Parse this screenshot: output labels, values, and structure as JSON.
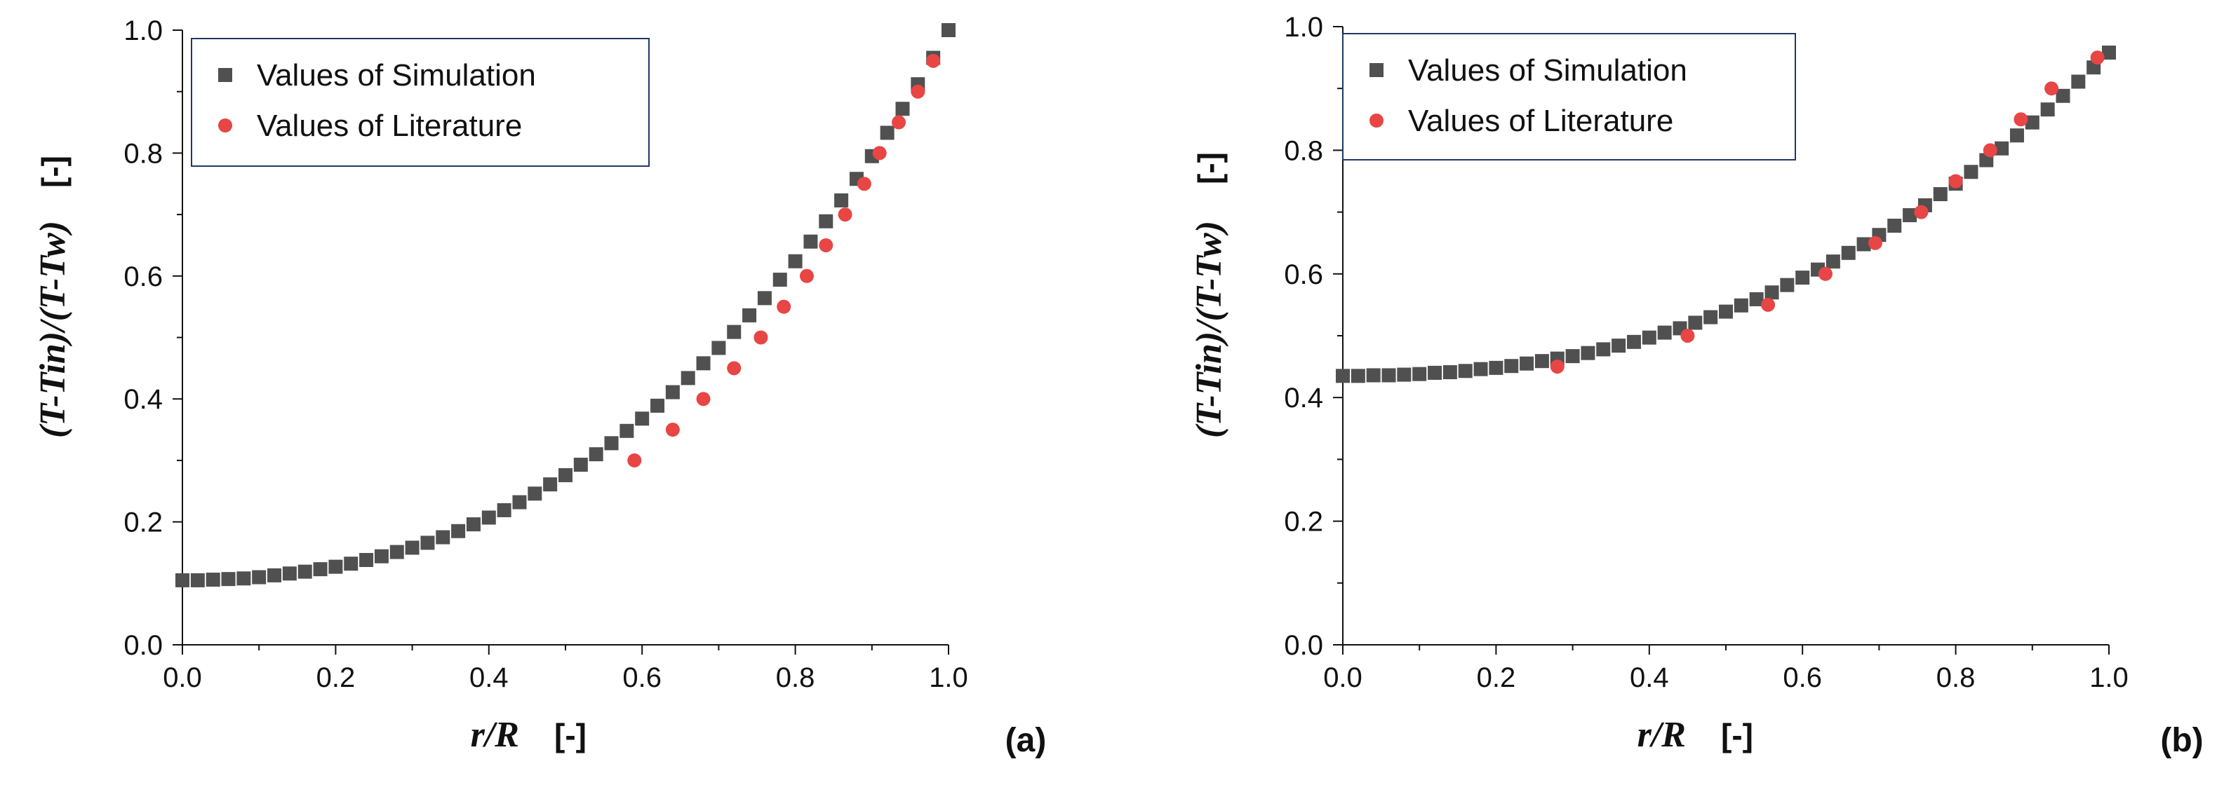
{
  "chart_data": [
    {
      "type": "scatter",
      "panel_label": "(a)",
      "xlabel": "r/R",
      "xlabel_unit": "[-]",
      "ylabel": "(T-Tin)/(T-Tw)",
      "ylabel_unit": "[-]",
      "xlim": [
        0.0,
        1.0
      ],
      "ylim": [
        0.0,
        1.0
      ],
      "xticks": [
        "0.0",
        "0.2",
        "0.4",
        "0.6",
        "0.8",
        "1.0"
      ],
      "yticks": [
        "0.0",
        "0.2",
        "0.4",
        "0.6",
        "0.8",
        "1.0"
      ],
      "legend_position": "top-left",
      "series": [
        {
          "name": "Values of Simulation",
          "marker": "square",
          "color": "#505050",
          "x": [
            0.0,
            0.02,
            0.04,
            0.06,
            0.08,
            0.1,
            0.12,
            0.14,
            0.16,
            0.18,
            0.2,
            0.22,
            0.24,
            0.26,
            0.28,
            0.3,
            0.32,
            0.34,
            0.36,
            0.38,
            0.4,
            0.42,
            0.44,
            0.46,
            0.48,
            0.5,
            0.52,
            0.54,
            0.56,
            0.58,
            0.6,
            0.62,
            0.64,
            0.66,
            0.68,
            0.7,
            0.72,
            0.74,
            0.76,
            0.78,
            0.8,
            0.82,
            0.84,
            0.86,
            0.88,
            0.9,
            0.92,
            0.94,
            0.96,
            0.98,
            1.0
          ],
          "y": [
            0.105,
            0.105,
            0.106,
            0.107,
            0.108,
            0.11,
            0.113,
            0.116,
            0.119,
            0.123,
            0.127,
            0.132,
            0.138,
            0.144,
            0.151,
            0.158,
            0.166,
            0.175,
            0.185,
            0.196,
            0.207,
            0.219,
            0.232,
            0.246,
            0.261,
            0.276,
            0.293,
            0.31,
            0.328,
            0.348,
            0.368,
            0.389,
            0.411,
            0.434,
            0.458,
            0.483,
            0.509,
            0.536,
            0.564,
            0.594,
            0.624,
            0.656,
            0.689,
            0.723,
            0.758,
            0.795,
            0.833,
            0.872,
            0.912,
            0.955,
            1.0
          ]
        },
        {
          "name": "Values of Literature",
          "marker": "circle",
          "color": "#e84545",
          "x": [
            0.59,
            0.64,
            0.68,
            0.72,
            0.755,
            0.785,
            0.815,
            0.84,
            0.865,
            0.89,
            0.91,
            0.935,
            0.96,
            0.98
          ],
          "y": [
            0.3,
            0.35,
            0.4,
            0.45,
            0.5,
            0.55,
            0.6,
            0.65,
            0.7,
            0.75,
            0.8,
            0.85,
            0.9,
            0.95
          ]
        }
      ]
    },
    {
      "type": "scatter",
      "panel_label": "(b)",
      "xlabel": "r/R",
      "xlabel_unit": "[-]",
      "ylabel": "(T-Tin)/(T-Tw)",
      "ylabel_unit": "[-]",
      "xlim": [
        0.0,
        1.0
      ],
      "ylim": [
        0.0,
        1.0
      ],
      "xticks": [
        "0.0",
        "0.2",
        "0.4",
        "0.6",
        "0.8",
        "1.0"
      ],
      "yticks": [
        "0.0",
        "0.2",
        "0.4",
        "0.6",
        "0.8",
        "1.0"
      ],
      "legend_position": "top-left",
      "series": [
        {
          "name": "Values of Simulation",
          "marker": "square",
          "color": "#505050",
          "x": [
            0.0,
            0.02,
            0.04,
            0.06,
            0.08,
            0.1,
            0.12,
            0.14,
            0.16,
            0.18,
            0.2,
            0.22,
            0.24,
            0.26,
            0.28,
            0.3,
            0.32,
            0.34,
            0.36,
            0.38,
            0.4,
            0.42,
            0.44,
            0.46,
            0.48,
            0.5,
            0.52,
            0.54,
            0.56,
            0.58,
            0.6,
            0.62,
            0.64,
            0.66,
            0.68,
            0.7,
            0.72,
            0.74,
            0.76,
            0.78,
            0.8,
            0.82,
            0.84,
            0.86,
            0.88,
            0.9,
            0.92,
            0.94,
            0.96,
            0.98,
            1.0
          ],
          "y": [
            0.435,
            0.435,
            0.436,
            0.436,
            0.437,
            0.438,
            0.44,
            0.441,
            0.443,
            0.446,
            0.448,
            0.451,
            0.455,
            0.459,
            0.463,
            0.467,
            0.472,
            0.478,
            0.484,
            0.49,
            0.497,
            0.505,
            0.512,
            0.521,
            0.53,
            0.539,
            0.549,
            0.559,
            0.57,
            0.582,
            0.594,
            0.607,
            0.62,
            0.634,
            0.648,
            0.663,
            0.678,
            0.695,
            0.711,
            0.729,
            0.746,
            0.765,
            0.784,
            0.803,
            0.824,
            0.845,
            0.866,
            0.888,
            0.911,
            0.934,
            0.958
          ]
        },
        {
          "name": "Values of Literature",
          "marker": "circle",
          "color": "#e84545",
          "x": [
            0.28,
            0.45,
            0.555,
            0.63,
            0.695,
            0.755,
            0.8,
            0.845,
            0.885,
            0.925,
            0.985
          ],
          "y": [
            0.45,
            0.5,
            0.55,
            0.6,
            0.65,
            0.7,
            0.75,
            0.8,
            0.85,
            0.9,
            0.95
          ]
        }
      ]
    }
  ]
}
